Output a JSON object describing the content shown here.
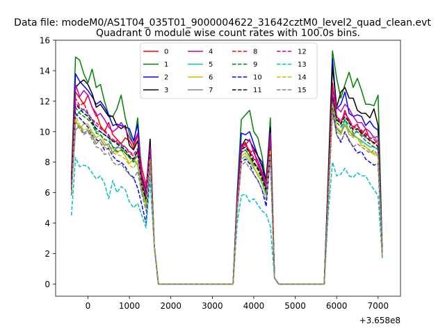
{
  "chart_data": {
    "type": "line",
    "suptitle": "Data file: modeM0/AS1T04_035T01_9000004622_31642cztM0_level2_quad_clean.evt",
    "title": "Quadrant 0 module wise count rates with 100.0s bins.",
    "xlabel": "",
    "ylabel": "",
    "x_offset_label": "+3.658e8",
    "xlim": [
      -780,
      7540
    ],
    "ylim": [
      -0.8,
      16
    ],
    "x_ticks": [
      0,
      1000,
      2000,
      3000,
      4000,
      5000,
      6000,
      7000
    ],
    "y_ticks": [
      0,
      2,
      4,
      6,
      8,
      10,
      12,
      14,
      16
    ],
    "grid": false,
    "legend_position": "upper center",
    "legend_columns": 4,
    "x": [
      -400,
      -300,
      -200,
      -100,
      0,
      100,
      200,
      300,
      400,
      500,
      600,
      700,
      800,
      900,
      1000,
      1100,
      1200,
      1300,
      1400,
      1500,
      1600,
      1700,
      1800,
      3500,
      3600,
      3700,
      3800,
      3900,
      4000,
      4100,
      4200,
      4300,
      4400,
      4500,
      4600,
      5700,
      5800,
      5900,
      6000,
      6100,
      6200,
      6300,
      6400,
      6500,
      6600,
      6700,
      6800,
      6900,
      7000,
      7100
    ],
    "series": [
      {
        "name": "0",
        "color": "#ff0000",
        "dash": "solid",
        "values": [
          6.5,
          12.6,
          12.2,
          11.8,
          12.4,
          11.6,
          11.2,
          10.4,
          10.0,
          10.6,
          9.8,
          9.5,
          9.2,
          9.6,
          9.4,
          8.9,
          9.8,
          7.6,
          6.5,
          8.5,
          2.5,
          0,
          0,
          0,
          5.5,
          9.0,
          9.3,
          8.6,
          8.8,
          7.8,
          7.2,
          6.3,
          9.5,
          0.4,
          0,
          0,
          6.5,
          13.2,
          11.0,
          10.5,
          11.4,
          10.6,
          10.3,
          10.5,
          9.8,
          10.2,
          9.5,
          9.2,
          9.4,
          1.9
        ]
      },
      {
        "name": "1",
        "color": "#008000",
        "dash": "solid",
        "values": [
          7.0,
          14.9,
          14.7,
          13.8,
          13.2,
          14.1,
          12.9,
          13.1,
          12.0,
          11.1,
          11.0,
          11.5,
          12.4,
          10.9,
          9.9,
          9.1,
          10.9,
          7.0,
          5.5,
          9.5,
          2.5,
          0,
          0,
          0,
          6.0,
          10.8,
          11.1,
          11.4,
          10.0,
          9.6,
          8.4,
          6.6,
          10.9,
          0.4,
          0,
          0,
          7.5,
          15.3,
          13.5,
          12.2,
          13.1,
          13.9,
          12.9,
          13.5,
          12.7,
          11.8,
          11.8,
          11.7,
          12.4,
          2.2
        ]
      },
      {
        "name": "2",
        "color": "#0000ff",
        "dash": "solid",
        "values": [
          6.8,
          13.8,
          13.3,
          13.0,
          12.7,
          12.3,
          11.8,
          12.0,
          11.6,
          11.1,
          10.4,
          10.5,
          10.4,
          10.3,
          10.2,
          9.4,
          10.5,
          6.6,
          5.9,
          9.3,
          2.5,
          0,
          0,
          0,
          5.8,
          9.9,
          9.8,
          10.0,
          9.2,
          8.4,
          8.0,
          6.0,
          10.3,
          0.4,
          0,
          0,
          7.0,
          14.8,
          11.5,
          11.8,
          12.6,
          11.2,
          11.0,
          11.1,
          11.0,
          10.4,
          10.7,
          10.3,
          10.1,
          2.1
        ]
      },
      {
        "name": "3",
        "color": "#000000",
        "dash": "solid",
        "values": [
          7.0,
          12.9,
          13.2,
          13.4,
          13.1,
          12.5,
          11.6,
          11.8,
          11.4,
          11.0,
          11.0,
          10.4,
          10.2,
          10.4,
          9.1,
          8.8,
          9.4,
          7.0,
          6.1,
          9.5,
          2.5,
          0,
          0,
          0,
          5.7,
          9.0,
          9.5,
          9.4,
          8.9,
          8.4,
          7.7,
          6.9,
          10.2,
          0.4,
          0,
          0,
          7.2,
          14.3,
          11.6,
          12.6,
          12.9,
          12.2,
          12.2,
          11.4,
          11.2,
          11.2,
          10.9,
          11.5,
          10.4,
          2.0
        ]
      },
      {
        "name": "4",
        "color": "#bf00bf",
        "dash": "solid",
        "values": [
          6.6,
          13.1,
          12.3,
          12.7,
          12.4,
          11.6,
          11.0,
          11.2,
          10.8,
          10.3,
          10.0,
          10.2,
          10.6,
          10.2,
          9.6,
          9.2,
          9.9,
          7.2,
          6.2,
          9.0,
          2.5,
          0,
          0,
          0,
          5.6,
          9.2,
          9.1,
          9.5,
          8.6,
          8.1,
          7.4,
          6.5,
          9.9,
          0.4,
          0,
          0,
          6.8,
          13.0,
          11.6,
          11.3,
          11.8,
          11.5,
          11.0,
          10.6,
          10.6,
          10.2,
          10.0,
          9.6,
          9.7,
          2.0
        ]
      },
      {
        "name": "5",
        "color": "#00bfbf",
        "dash": "solid",
        "values": [
          6.2,
          11.0,
          11.3,
          11.5,
          11.1,
          10.8,
          10.0,
          10.0,
          9.8,
          9.6,
          9.0,
          8.9,
          9.3,
          8.6,
          8.3,
          8.2,
          7.8,
          6.0,
          5.2,
          8.4,
          2.5,
          0,
          0,
          0,
          5.2,
          8.2,
          8.4,
          8.0,
          7.6,
          7.2,
          6.6,
          5.8,
          9.0,
          0.4,
          0,
          0,
          6.2,
          12.1,
          10.2,
          9.9,
          10.8,
          10.0,
          9.8,
          9.6,
          9.4,
          9.2,
          9.0,
          9.0,
          8.8,
          1.9
        ]
      },
      {
        "name": "6",
        "color": "#bfbf00",
        "dash": "solid",
        "values": [
          6.0,
          10.8,
          10.2,
          10.5,
          10.5,
          10.0,
          9.6,
          9.8,
          9.3,
          9.0,
          8.9,
          8.6,
          8.8,
          8.4,
          7.9,
          8.2,
          7.9,
          6.6,
          5.0,
          8.5,
          2.5,
          0,
          0,
          0,
          5.0,
          8.4,
          8.6,
          8.2,
          7.7,
          7.1,
          6.8,
          6.4,
          9.0,
          0.4,
          0,
          0,
          6.0,
          11.6,
          10.0,
          9.8,
          10.5,
          9.8,
          9.7,
          9.6,
          9.1,
          9.0,
          8.7,
          8.5,
          8.4,
          1.9
        ]
      },
      {
        "name": "7",
        "color": "#808080",
        "dash": "solid",
        "values": [
          6.0,
          10.1,
          10.4,
          9.9,
          10.1,
          9.7,
          9.2,
          9.5,
          9.1,
          9.2,
          8.6,
          9.0,
          8.9,
          8.6,
          8.4,
          8.1,
          8.8,
          6.2,
          5.5,
          8.6,
          2.5,
          0,
          0,
          0,
          5.2,
          8.6,
          8.8,
          8.4,
          7.8,
          7.7,
          7.0,
          6.4,
          8.8,
          0.4,
          0,
          0,
          6.1,
          11.8,
          10.2,
          10.0,
          10.4,
          10.1,
          9.7,
          10.2,
          9.8,
          9.6,
          9.5,
          9.7,
          9.3,
          1.8
        ]
      },
      {
        "name": "8",
        "color": "#ff0000",
        "dash": "dashed",
        "values": [
          6.4,
          12.2,
          11.7,
          11.9,
          11.2,
          10.8,
          10.6,
          10.3,
          10.1,
          9.8,
          9.3,
          9.4,
          9.2,
          9.0,
          8.6,
          8.4,
          8.6,
          6.8,
          5.7,
          8.4,
          2.5,
          0,
          0,
          0,
          5.3,
          8.8,
          9.2,
          8.7,
          8.2,
          7.9,
          7.2,
          6.1,
          9.2,
          0.4,
          0,
          0,
          6.6,
          12.9,
          11.0,
          10.6,
          11.2,
          10.8,
          10.2,
          10.4,
          10.0,
          9.8,
          9.6,
          9.5,
          9.2,
          2.0
        ]
      },
      {
        "name": "9",
        "color": "#008000",
        "dash": "dashed",
        "values": [
          6.2,
          11.6,
          11.2,
          11.0,
          10.8,
          10.5,
          9.9,
          9.8,
          9.5,
          9.4,
          9.0,
          8.7,
          8.8,
          8.6,
          8.3,
          8.0,
          8.5,
          6.6,
          5.4,
          8.4,
          2.5,
          0,
          0,
          0,
          5.0,
          8.7,
          8.8,
          8.4,
          7.9,
          7.5,
          6.8,
          6.0,
          9.2,
          0.4,
          0,
          0,
          6.4,
          12.3,
          10.6,
          10.3,
          10.8,
          10.4,
          9.9,
          10.0,
          9.7,
          9.4,
          9.2,
          9.0,
          8.9,
          1.9
        ]
      },
      {
        "name": "10",
        "color": "#0000ff",
        "dash": "dashed",
        "values": [
          5.8,
          11.2,
          10.9,
          10.6,
          10.3,
          9.8,
          9.5,
          9.3,
          8.8,
          8.9,
          8.4,
          8.1,
          8.0,
          7.7,
          7.2,
          7.0,
          6.3,
          5.2,
          4.0,
          7.8,
          2.5,
          0,
          0,
          0,
          4.8,
          8.0,
          8.2,
          7.9,
          7.2,
          6.8,
          6.2,
          5.1,
          8.4,
          0.4,
          0,
          0,
          5.8,
          11.5,
          9.8,
          9.3,
          10.0,
          9.4,
          9.0,
          8.6,
          8.7,
          8.2,
          8.0,
          7.8,
          7.9,
          1.8
        ]
      },
      {
        "name": "11",
        "color": "#000000",
        "dash": "dashed",
        "values": [
          6.2,
          11.8,
          11.5,
          11.2,
          11.0,
          10.6,
          10.2,
          10.0,
          9.8,
          9.6,
          9.4,
          9.2,
          9.0,
          8.8,
          8.4,
          8.2,
          8.8,
          6.4,
          5.6,
          8.8,
          2.5,
          0,
          0,
          0,
          5.1,
          8.8,
          9.0,
          8.6,
          8.0,
          7.6,
          7.0,
          6.2,
          9.4,
          0.4,
          0,
          0,
          6.3,
          12.4,
          10.8,
          10.5,
          11.0,
          10.6,
          10.1,
          10.2,
          9.9,
          9.7,
          9.4,
          9.3,
          9.0,
          1.9
        ]
      },
      {
        "name": "12",
        "color": "#bf00bf",
        "dash": "dashed",
        "values": [
          6.3,
          11.9,
          11.6,
          11.4,
          11.2,
          10.8,
          10.4,
          10.2,
          10.0,
          9.7,
          9.5,
          9.3,
          9.1,
          9.0,
          8.7,
          8.5,
          8.9,
          6.7,
          5.8,
          8.9,
          2.5,
          0,
          0,
          0,
          5.2,
          9.0,
          9.1,
          8.8,
          8.3,
          7.9,
          7.3,
          6.3,
          9.4,
          0.4,
          0,
          0,
          6.4,
          12.6,
          11.0,
          10.7,
          11.2,
          10.8,
          10.3,
          10.4,
          10.1,
          9.9,
          9.6,
          9.5,
          9.2,
          2.0
        ]
      },
      {
        "name": "13",
        "color": "#00bfbf",
        "dash": "dashed",
        "values": [
          4.5,
          8.3,
          7.7,
          7.8,
          7.7,
          7.3,
          6.9,
          7.1,
          6.6,
          5.6,
          6.8,
          6.0,
          6.4,
          6.2,
          5.4,
          5.0,
          5.3,
          4.5,
          3.7,
          6.8,
          2.5,
          0,
          0,
          0,
          4.0,
          5.8,
          5.9,
          5.4,
          5.6,
          5.2,
          4.8,
          4.6,
          3.8,
          0.4,
          0,
          0,
          4.8,
          8.0,
          7.1,
          7.2,
          7.6,
          7.1,
          7.0,
          7.3,
          7.1,
          7.1,
          6.6,
          6.2,
          5.8,
          1.7
        ]
      },
      {
        "name": "14",
        "color": "#bfbf00",
        "dash": "dashed",
        "values": [
          5.9,
          11.1,
          10.4,
          10.1,
          10.2,
          9.9,
          9.4,
          9.3,
          9.0,
          8.8,
          8.6,
          8.5,
          8.4,
          8.2,
          7.8,
          7.6,
          8.1,
          6.2,
          5.2,
          8.2,
          2.5,
          0,
          0,
          0,
          4.9,
          8.2,
          8.4,
          8.0,
          7.6,
          7.2,
          6.6,
          5.8,
          8.8,
          0.4,
          0,
          0,
          6.0,
          11.8,
          10.3,
          10.0,
          10.5,
          10.1,
          9.6,
          9.6,
          9.3,
          9.0,
          8.8,
          8.6,
          8.4,
          1.9
        ]
      },
      {
        "name": "15",
        "color": "#808080",
        "dash": "dashed",
        "values": [
          5.8,
          10.6,
          10.2,
          9.8,
          10.0,
          9.5,
          9.0,
          8.9,
          8.5,
          8.6,
          8.0,
          7.8,
          7.9,
          7.5,
          7.2,
          6.9,
          7.4,
          5.9,
          4.8,
          7.8,
          2.5,
          0,
          0,
          0,
          4.7,
          7.8,
          8.0,
          7.6,
          7.2,
          6.8,
          6.2,
          5.5,
          8.3,
          0.4,
          0,
          0,
          5.6,
          11.2,
          9.8,
          9.4,
          9.9,
          9.5,
          9.0,
          9.2,
          9.0,
          8.8,
          8.6,
          8.8,
          8.4,
          1.8
        ]
      }
    ]
  }
}
